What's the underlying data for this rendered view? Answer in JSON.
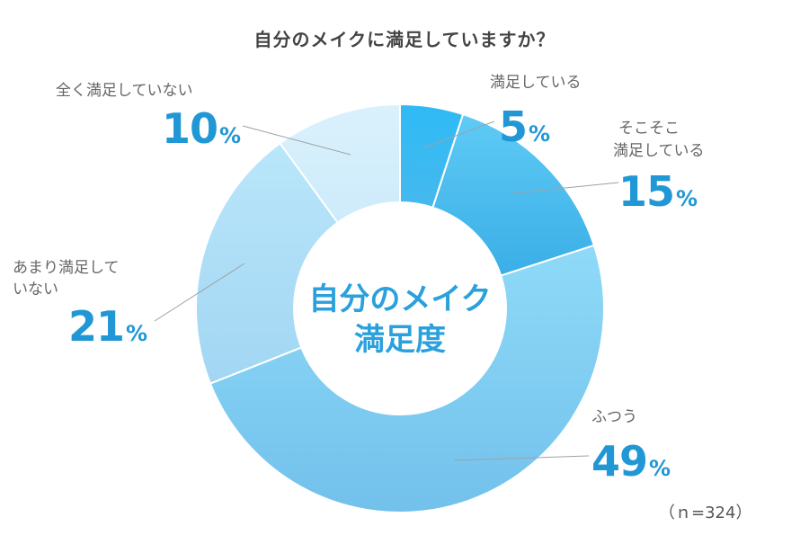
{
  "chart_data": {
    "type": "pie",
    "title": "自分のメイクに満足していますか？",
    "center_label": [
      "自分のメイク",
      "満足度"
    ],
    "slices": [
      {
        "label": "満足している",
        "value": 5,
        "color": "#33bdf5"
      },
      {
        "label": "そこそこ満足している",
        "value": 15,
        "color": "#5ccaf5"
      },
      {
        "label": "ふつう",
        "value": 49,
        "color": "#7fcdf2"
      },
      {
        "label": "あまり満足していない",
        "value": 21,
        "color": "#abdff7"
      },
      {
        "label": "全く満足していない",
        "value": 10,
        "color": "#d2eefb"
      }
    ],
    "sample_size": "（ｎ=324）"
  },
  "labels": {
    "s0": {
      "lines": [
        "満足している"
      ],
      "num": "5",
      "sym": "%"
    },
    "s1": {
      "lines": [
        "そこそこ",
        "満足している"
      ],
      "num": "15",
      "sym": "%"
    },
    "s2": {
      "lines": [
        "ふつう"
      ],
      "num": "49",
      "sym": "%"
    },
    "s3": {
      "lines": [
        "あまり満足して",
        "いない"
      ],
      "num": "21",
      "sym": "%"
    },
    "s4": {
      "lines": [
        "全く満足していない"
      ],
      "num": "10",
      "sym": "%"
    }
  }
}
